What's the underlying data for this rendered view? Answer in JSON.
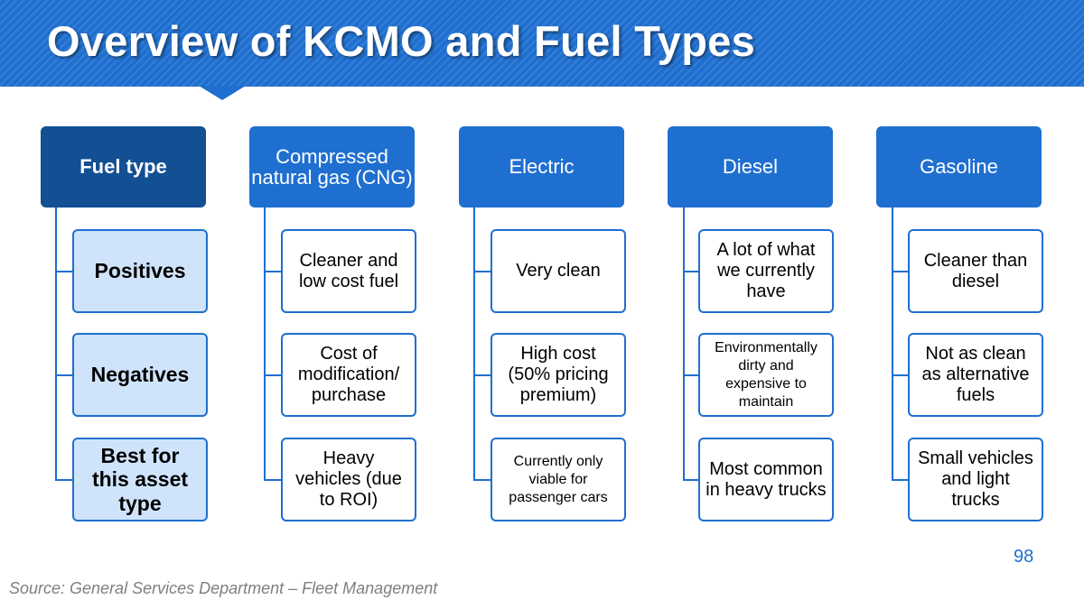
{
  "title": "Overview of KCMO and Fuel Types",
  "columns": [
    {
      "header": "Fuel type",
      "cells": [
        "Positives",
        "Negatives",
        "Best for this asset type"
      ]
    },
    {
      "header": "Compressed natural gas (CNG)",
      "cells": [
        "Cleaner and low cost fuel",
        "Cost of modification/ purchase",
        "Heavy vehicles (due to ROI)"
      ]
    },
    {
      "header": "Electric",
      "cells": [
        "Very clean",
        "High cost (50% pricing premium)",
        "Currently only viable for passenger cars"
      ]
    },
    {
      "header": "Diesel",
      "cells": [
        "A lot of what we currently have",
        "Environmentally dirty and expensive to maintain",
        "Most common in heavy trucks"
      ]
    },
    {
      "header": "Gasoline",
      "cells": [
        "Cleaner than diesel",
        "Not as clean as alternative fuels",
        "Small vehicles and light trucks"
      ]
    }
  ],
  "page_number": "98",
  "source": "Source: General Services Department – Fleet Management",
  "colors": {
    "accent": "#1f6fd0",
    "accent_dark": "#134f93",
    "row_label_fill": "#cfe4fb"
  }
}
